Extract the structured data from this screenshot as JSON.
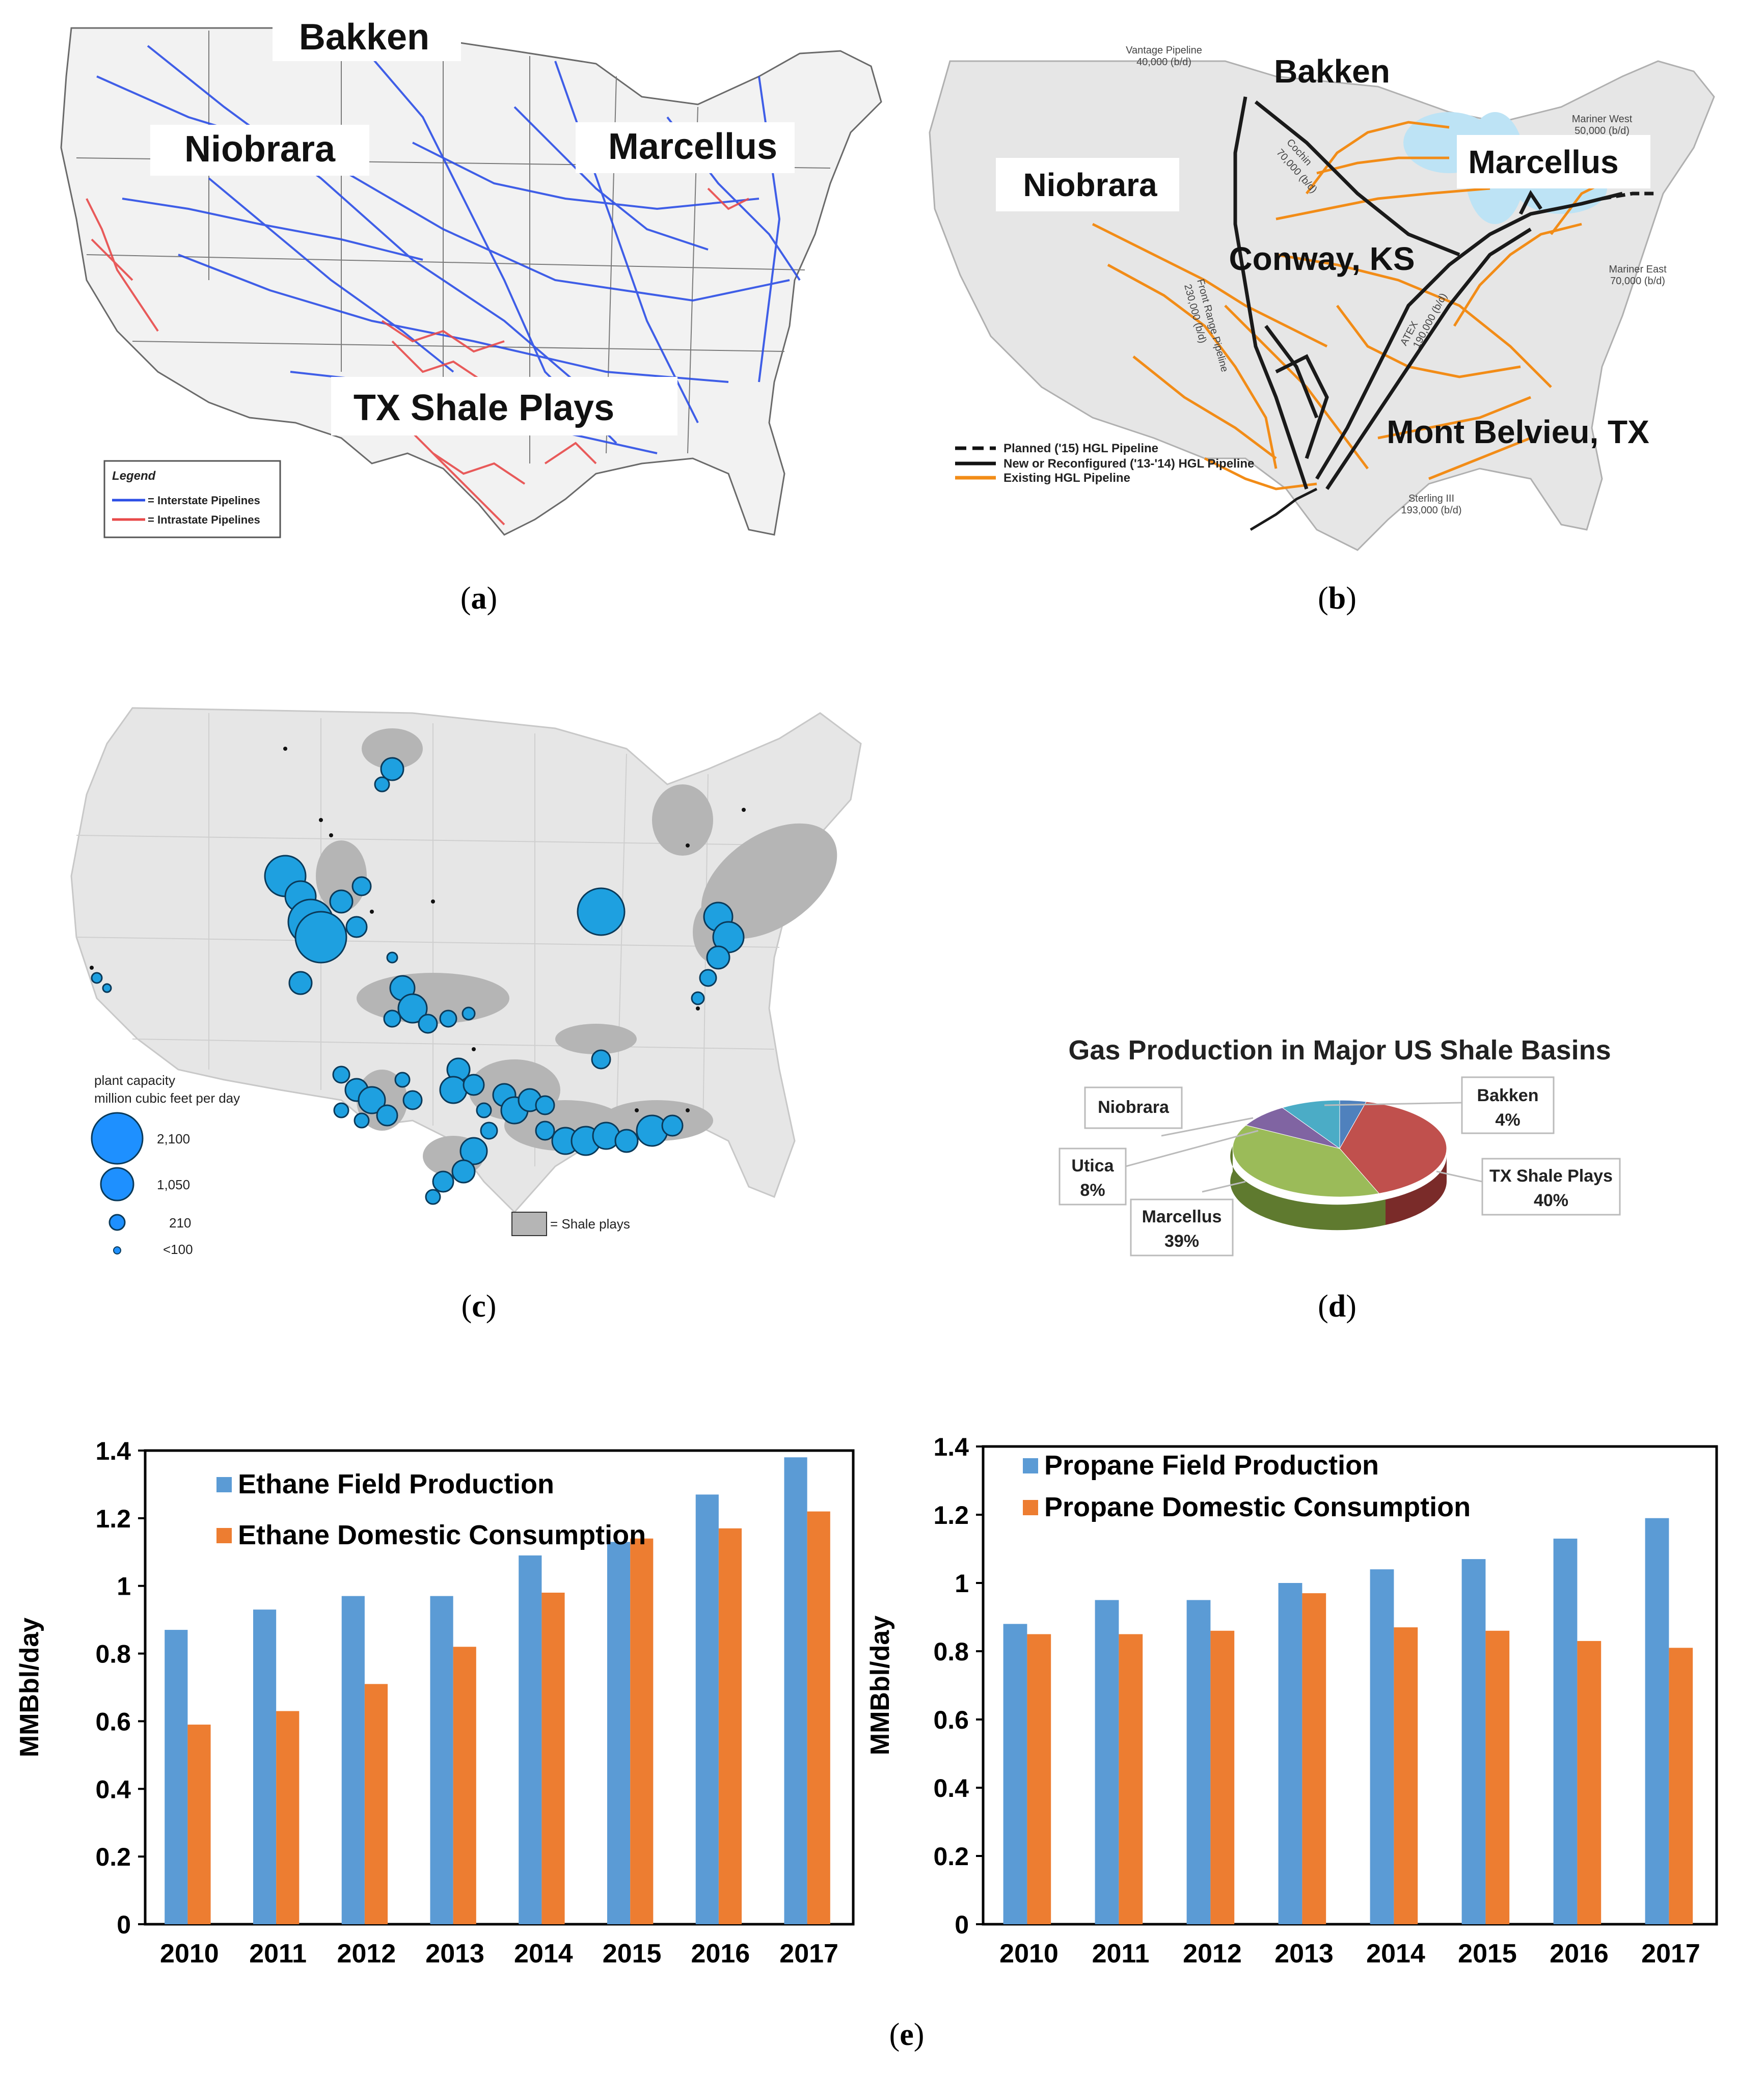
{
  "colors": {
    "land": "#e6e6e6",
    "land_border": "#9a9a9a",
    "interstate": "#2c4ee6",
    "intrastate": "#e84a4a",
    "hgl_existing": "#f28c17",
    "hgl_new": "#1a1a1a",
    "lakes": "#bde3f5",
    "plant": "#1ea0e0",
    "shale": "#b5b5b5",
    "ethane_prod": "#5b9bd5",
    "ethane_cons": "#ed7d31",
    "pie_txshale": "#c0504d",
    "pie_marcellus": "#9bbb59",
    "pie_utica": "#8064a2",
    "pie_niobrara": "#4bacc6",
    "pie_bakken": "#4f81bd"
  },
  "panel_a": {
    "caption_letter": "a",
    "labels": {
      "bakken": "Bakken",
      "niobrara": "Niobrara",
      "marcellus": "Marcellus",
      "tx": "TX Shale Plays"
    },
    "legend": {
      "title": "Legend",
      "interstate": "= Interstate Pipelines",
      "intrastate": "= Intrastate Pipelines"
    }
  },
  "panel_b": {
    "caption_letter": "b",
    "labels": {
      "bakken": "Bakken",
      "niobrara": "Niobrara",
      "marcellus": "Marcellus",
      "conway": "Conway, KS",
      "mont": "Mont Belvieu, TX"
    },
    "pipelines": {
      "vantage": "Vantage Pipeline",
      "vantage_cap": "40,000 (b/d)",
      "cochin": "Cochin",
      "cochin_cap": "70,000 (b/d)",
      "mariner_west": "Mariner West",
      "mariner_west_cap": "50,000 (b/d)",
      "mariner_east": "Mariner East",
      "mariner_east_cap": "70,000 (b/d)",
      "front_range": "Front Range Pipeline",
      "front_range_cap": "230,000 (b/d)",
      "atex": "ATEX",
      "atex_cap": "190,000 (b/d)",
      "sterling": "Sterling III",
      "sterling_cap": "193,000 (b/d)"
    },
    "legend": {
      "planned": "Planned ('15) HGL Pipeline",
      "new": "New or Reconfigured ('13-'14) HGL Pipeline",
      "existing": "Existing HGL Pipeline"
    }
  },
  "panel_c": {
    "caption_letter": "c",
    "legend": {
      "title1": "plant capacity",
      "title2": "million cubic feet per day",
      "sizes": [
        "2,100",
        "1,050",
        "210",
        "<100"
      ],
      "shale": "= Shale plays"
    }
  },
  "panel_d": {
    "caption_letter": "d",
    "title": "Gas Production in Major US Shale Basins",
    "labels": {
      "niobrara": "Niobrara",
      "bakken": "Bakken",
      "bakken_pct": "4%",
      "utica": "Utica",
      "utica_pct": "8%",
      "marcellus": "Marcellus",
      "marcellus_pct": "39%",
      "tx": "TX Shale Plays",
      "tx_pct": "40%"
    }
  },
  "panel_e": {
    "caption_letter": "e"
  },
  "chart_data": [
    {
      "type": "pie",
      "title": "Gas Production in Major US Shale Basins",
      "slices": [
        {
          "name": "Bakken",
          "value": 4
        },
        {
          "name": "TX Shale Plays",
          "value": 40
        },
        {
          "name": "Marcellus",
          "value": 39
        },
        {
          "name": "Utica",
          "value": 8
        },
        {
          "name": "Niobrara",
          "value": 9
        }
      ]
    },
    {
      "type": "bar",
      "title": "",
      "xlabel": "",
      "ylabel": "MMBbl/day",
      "ylim": [
        0,
        1.4
      ],
      "yticks": [
        "0",
        "0.2",
        "0.4",
        "0.6",
        "0.8",
        "1",
        "1.2",
        "1.4"
      ],
      "categories": [
        "2010",
        "2011",
        "2012",
        "2013",
        "2014",
        "2015",
        "2016",
        "2017"
      ],
      "series": [
        {
          "name": "Ethane Field Production",
          "values": [
            0.87,
            0.93,
            0.97,
            0.97,
            1.09,
            1.13,
            1.27,
            1.38
          ]
        },
        {
          "name": "Ethane Domestic Consumption",
          "values": [
            0.59,
            0.63,
            0.71,
            0.82,
            0.98,
            1.14,
            1.17,
            1.22
          ]
        }
      ]
    },
    {
      "type": "bar",
      "title": "",
      "xlabel": "",
      "ylabel": "MMBbl/day",
      "ylim": [
        0,
        1.4
      ],
      "yticks": [
        "0",
        "0.2",
        "0.4",
        "0.6",
        "0.8",
        "1",
        "1.2",
        "1.4"
      ],
      "categories": [
        "2010",
        "2011",
        "2012",
        "2013",
        "2014",
        "2015",
        "2016",
        "2017"
      ],
      "series": [
        {
          "name": "Propane Field Production",
          "values": [
            0.88,
            0.95,
            0.95,
            1.0,
            1.04,
            1.07,
            1.13,
            1.19
          ]
        },
        {
          "name": "Propane Domestic Consumption",
          "values": [
            0.85,
            0.85,
            0.86,
            0.97,
            0.87,
            0.86,
            0.83,
            0.81
          ]
        }
      ]
    }
  ]
}
